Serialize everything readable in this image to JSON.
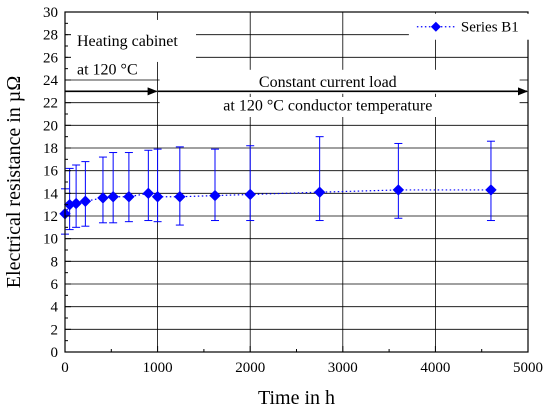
{
  "chart_data": {
    "type": "scatter",
    "xlabel": "Time in h",
    "ylabel": "Electrical resistance in µΩ",
    "xlim": [
      0,
      5000
    ],
    "ylim": [
      0,
      30
    ],
    "x_ticks": [
      0,
      1000,
      2000,
      3000,
      4000,
      5000
    ],
    "y_ticks": [
      0,
      2,
      4,
      6,
      8,
      10,
      12,
      14,
      16,
      18,
      20,
      22,
      24,
      26,
      28,
      30
    ],
    "grid": true,
    "legend_position": "top-right",
    "series": [
      {
        "name": "Series B1",
        "color": "#0000ff",
        "marker": "diamond",
        "line_style": "dotted",
        "points": [
          {
            "x": 0,
            "y": 12.2,
            "err_low": 10.4,
            "err_high": 14.4
          },
          {
            "x": 50,
            "y": 13.0,
            "err_low": 10.8,
            "err_high": 16.2
          },
          {
            "x": 120,
            "y": 13.1,
            "err_low": 11.0,
            "err_high": 16.5
          },
          {
            "x": 220,
            "y": 13.3,
            "err_low": 11.1,
            "err_high": 16.8
          },
          {
            "x": 410,
            "y": 13.6,
            "err_low": 11.4,
            "err_high": 17.2
          },
          {
            "x": 520,
            "y": 13.7,
            "err_low": 11.4,
            "err_high": 17.6
          },
          {
            "x": 690,
            "y": 13.7,
            "err_low": 11.5,
            "err_high": 17.6
          },
          {
            "x": 900,
            "y": 14.0,
            "err_low": 11.6,
            "err_high": 17.8
          },
          {
            "x": 1000,
            "y": 13.7,
            "err_low": 11.5,
            "err_high": 17.9
          },
          {
            "x": 1240,
            "y": 13.7,
            "err_low": 11.2,
            "err_high": 18.1
          },
          {
            "x": 1620,
            "y": 13.8,
            "err_low": 11.6,
            "err_high": 17.9
          },
          {
            "x": 2000,
            "y": 13.9,
            "err_low": 11.6,
            "err_high": 18.2
          },
          {
            "x": 2750,
            "y": 14.1,
            "err_low": 11.6,
            "err_high": 19.0
          },
          {
            "x": 3600,
            "y": 14.3,
            "err_low": 11.8,
            "err_high": 18.4
          },
          {
            "x": 4600,
            "y": 14.3,
            "err_low": 11.6,
            "err_high": 18.6
          }
        ]
      }
    ],
    "annotations": {
      "heating_line1": "Heating cabinet",
      "heating_line2": "at 120 °C",
      "load_line1": "Constant current load",
      "load_line2": "at 120 °C conductor temperature",
      "arrow_y": 23,
      "heating_range": [
        0,
        1000
      ],
      "load_range": [
        1000,
        5000
      ]
    }
  }
}
